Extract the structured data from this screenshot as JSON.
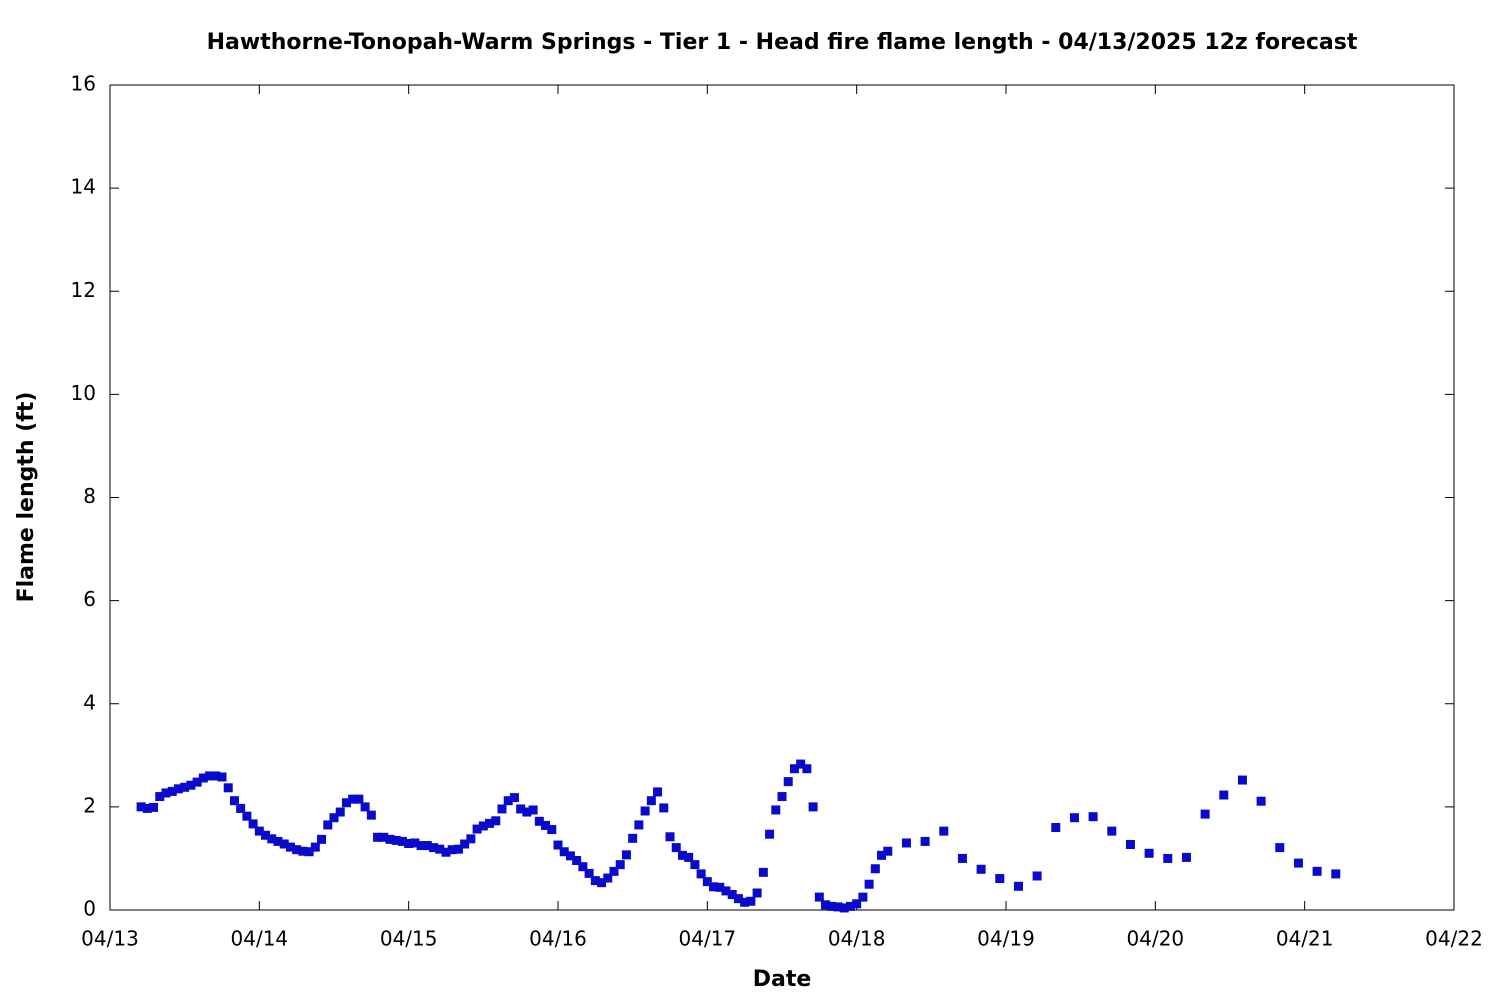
{
  "chart_data": {
    "type": "scatter",
    "title": "Hawthorne-Tonopah-Warm Springs - Tier 1 - Head fire flame length - 04/13/2025 12z forecast",
    "x_label": "Date",
    "y_label": "Flame length (ft)",
    "color": "#0a0acc",
    "xlim": [
      0,
      216
    ],
    "xticks": [
      {
        "value": 0,
        "label": "04/13"
      },
      {
        "value": 24,
        "label": "04/14"
      },
      {
        "value": 48,
        "label": "04/15"
      },
      {
        "value": 72,
        "label": "04/16"
      },
      {
        "value": 96,
        "label": "04/17"
      },
      {
        "value": 120,
        "label": "04/18"
      },
      {
        "value": 144,
        "label": "04/19"
      },
      {
        "value": 168,
        "label": "04/20"
      },
      {
        "value": 192,
        "label": "04/21"
      },
      {
        "value": 216,
        "label": "04/22"
      }
    ],
    "ylim": [
      0,
      16
    ],
    "yticks": [
      0,
      2,
      4,
      6,
      8,
      10,
      12,
      14,
      16
    ],
    "x": [
      5,
      6,
      7,
      8,
      9,
      10,
      11,
      12,
      13,
      14,
      15,
      16,
      17,
      18,
      19,
      20,
      21,
      22,
      23,
      24,
      25,
      26,
      27,
      28,
      29,
      30,
      31,
      32,
      33,
      34,
      35,
      36,
      37,
      38,
      39,
      40,
      41,
      42,
      43,
      44,
      45,
      46,
      47,
      48,
      49,
      50,
      51,
      52,
      53,
      54,
      55,
      56,
      57,
      58,
      59,
      60,
      61,
      62,
      63,
      64,
      65,
      66,
      67,
      68,
      69,
      70,
      71,
      72,
      73,
      74,
      75,
      76,
      77,
      78,
      79,
      80,
      81,
      82,
      83,
      84,
      85,
      86,
      87,
      88,
      89,
      90,
      91,
      92,
      93,
      94,
      95,
      96,
      97,
      98,
      99,
      100,
      101,
      102,
      103,
      104,
      105,
      106,
      107,
      108,
      109,
      110,
      111,
      112,
      113,
      114,
      115,
      116,
      117,
      118,
      119,
      120,
      121,
      122,
      123,
      124,
      125,
      128,
      131,
      134,
      137,
      140,
      143,
      146,
      149,
      152,
      155,
      158,
      161,
      164,
      167,
      170,
      173,
      176,
      179,
      182,
      185,
      188,
      191,
      194,
      197
    ],
    "values": [
      2.0,
      1.97,
      1.99,
      2.2,
      2.27,
      2.3,
      2.35,
      2.38,
      2.42,
      2.48,
      2.56,
      2.6,
      2.6,
      2.58,
      2.37,
      2.12,
      1.97,
      1.82,
      1.67,
      1.53,
      1.45,
      1.38,
      1.33,
      1.28,
      1.22,
      1.17,
      1.14,
      1.13,
      1.22,
      1.37,
      1.65,
      1.79,
      1.9,
      2.08,
      2.15,
      2.15,
      2.0,
      1.84,
      1.41,
      1.41,
      1.37,
      1.35,
      1.33,
      1.29,
      1.3,
      1.25,
      1.25,
      1.21,
      1.18,
      1.12,
      1.17,
      1.18,
      1.28,
      1.38,
      1.57,
      1.63,
      1.68,
      1.73,
      1.96,
      2.12,
      2.18,
      1.96,
      1.9,
      1.94,
      1.72,
      1.64,
      1.56,
      1.26,
      1.13,
      1.05,
      0.96,
      0.84,
      0.71,
      0.57,
      0.53,
      0.62,
      0.75,
      0.88,
      1.07,
      1.39,
      1.65,
      1.92,
      2.12,
      2.29,
      1.98,
      1.42,
      1.21,
      1.06,
      1.02,
      0.88,
      0.7,
      0.55,
      0.45,
      0.44,
      0.37,
      0.3,
      0.22,
      0.15,
      0.17,
      0.33,
      0.73,
      1.47,
      1.94,
      2.2,
      2.49,
      2.74,
      2.83,
      2.74,
      2.0,
      0.25,
      0.1,
      0.07,
      0.06,
      0.04,
      0.07,
      0.12,
      0.25,
      0.5,
      0.8,
      1.06,
      1.14,
      1.3,
      1.33,
      1.53,
      1.0,
      0.79,
      0.61,
      0.46,
      0.66,
      1.6,
      1.79,
      1.81,
      1.53,
      1.27,
      1.1,
      1.0,
      1.02,
      1.86,
      2.23,
      2.52,
      2.11,
      1.21,
      0.91,
      0.75,
      0.7
    ]
  }
}
